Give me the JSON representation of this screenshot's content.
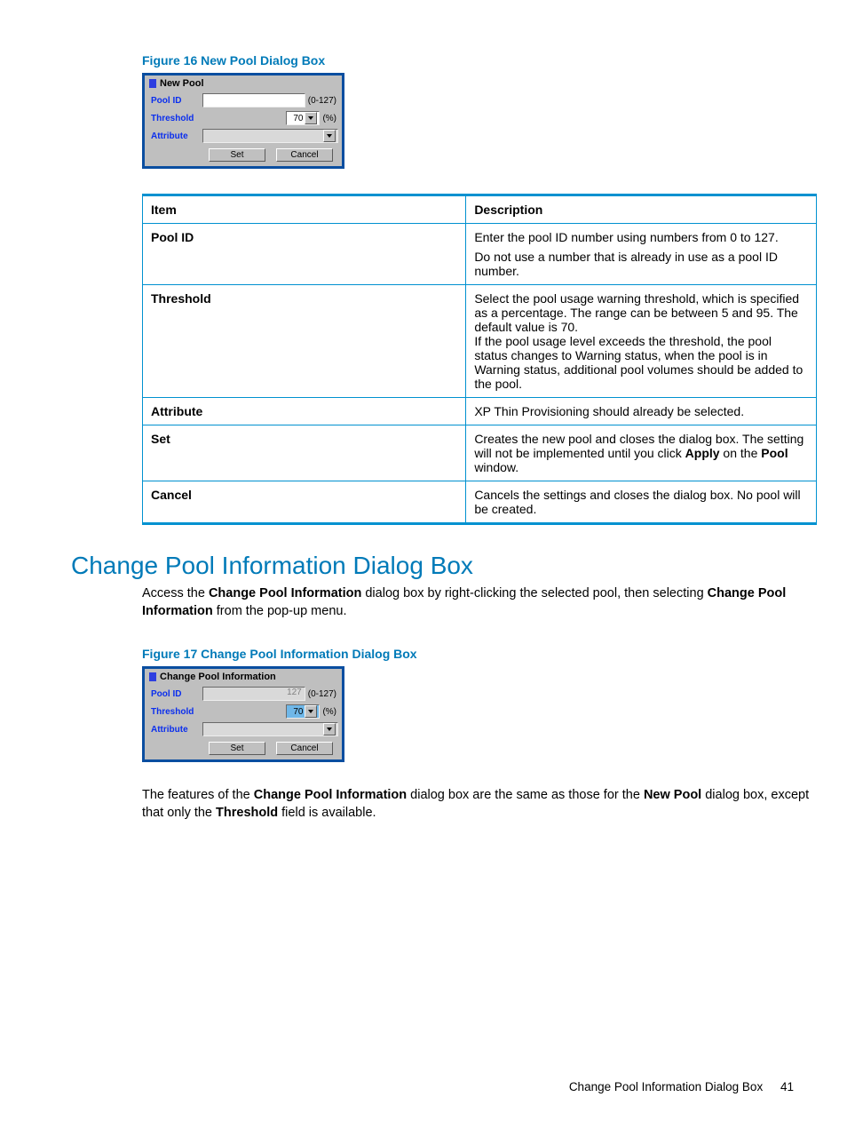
{
  "figure16": {
    "caption": "Figure 16 New Pool Dialog Box",
    "title": "New Pool",
    "rows": {
      "poolId": {
        "label": "Pool ID",
        "value": "",
        "suffix": "(0-127)"
      },
      "threshold": {
        "label": "Threshold",
        "value": "70",
        "suffix": "(%)"
      },
      "attribute": {
        "label": "Attribute",
        "value": ""
      }
    },
    "buttons": {
      "set": "Set",
      "cancel": "Cancel"
    }
  },
  "descTable": {
    "headers": {
      "item": "Item",
      "description": "Description"
    },
    "rows": [
      {
        "item": "Pool ID",
        "desc": "<p>Enter the pool ID number using numbers from 0 to 127.</p><p>Do not use a number that is already in use as a pool ID number.</p>"
      },
      {
        "item": "Threshold",
        "desc": "<p>Select the pool usage warning threshold, which is specified as a percentage. The range can be between 5 and 95. The default value is 70.<br>If the pool usage level exceeds the threshold, the pool status changes to Warning status, when the pool is in Warning status, additional pool volumes should be added to the pool.</p>"
      },
      {
        "item": "Attribute",
        "desc": "<p>XP Thin Provisioning should already be selected.</p>"
      },
      {
        "item": "Set",
        "desc": "<p>Creates the new pool and closes the dialog box. The setting will not be implemented until you click <b>Apply</b> on the <b>Pool</b> window.</p>"
      },
      {
        "item": "Cancel",
        "desc": "<p>Cancels the settings and closes the dialog box. No pool will be created.</p>"
      }
    ]
  },
  "section": {
    "heading": "Change Pool Information Dialog Box",
    "intro": "Access the <b>Change Pool Information</b> dialog box by right-clicking the selected pool, then selecting <b>Change Pool Information</b> from the pop-up menu."
  },
  "figure17": {
    "caption": "Figure 17 Change Pool Information Dialog Box",
    "title": "Change Pool Information",
    "rows": {
      "poolId": {
        "label": "Pool ID",
        "value": "127",
        "suffix": "(0-127)"
      },
      "threshold": {
        "label": "Threshold",
        "value": "70",
        "suffix": "(%)"
      },
      "attribute": {
        "label": "Attribute",
        "value": ""
      }
    },
    "buttons": {
      "set": "Set",
      "cancel": "Cancel"
    }
  },
  "note": "The features of the <b>Change Pool Information</b> dialog box are the same as those for the <b>New Pool</b> dialog box, except that only the <b>Threshold</b> field is available.",
  "footer": {
    "text": "Change Pool Information Dialog Box",
    "page": "41"
  },
  "colors": {
    "accent": "#007ab8",
    "tableBorder": "#0091d0",
    "dialogBorder": "#0a4ea0",
    "labelBlue": "#0a2eee"
  }
}
